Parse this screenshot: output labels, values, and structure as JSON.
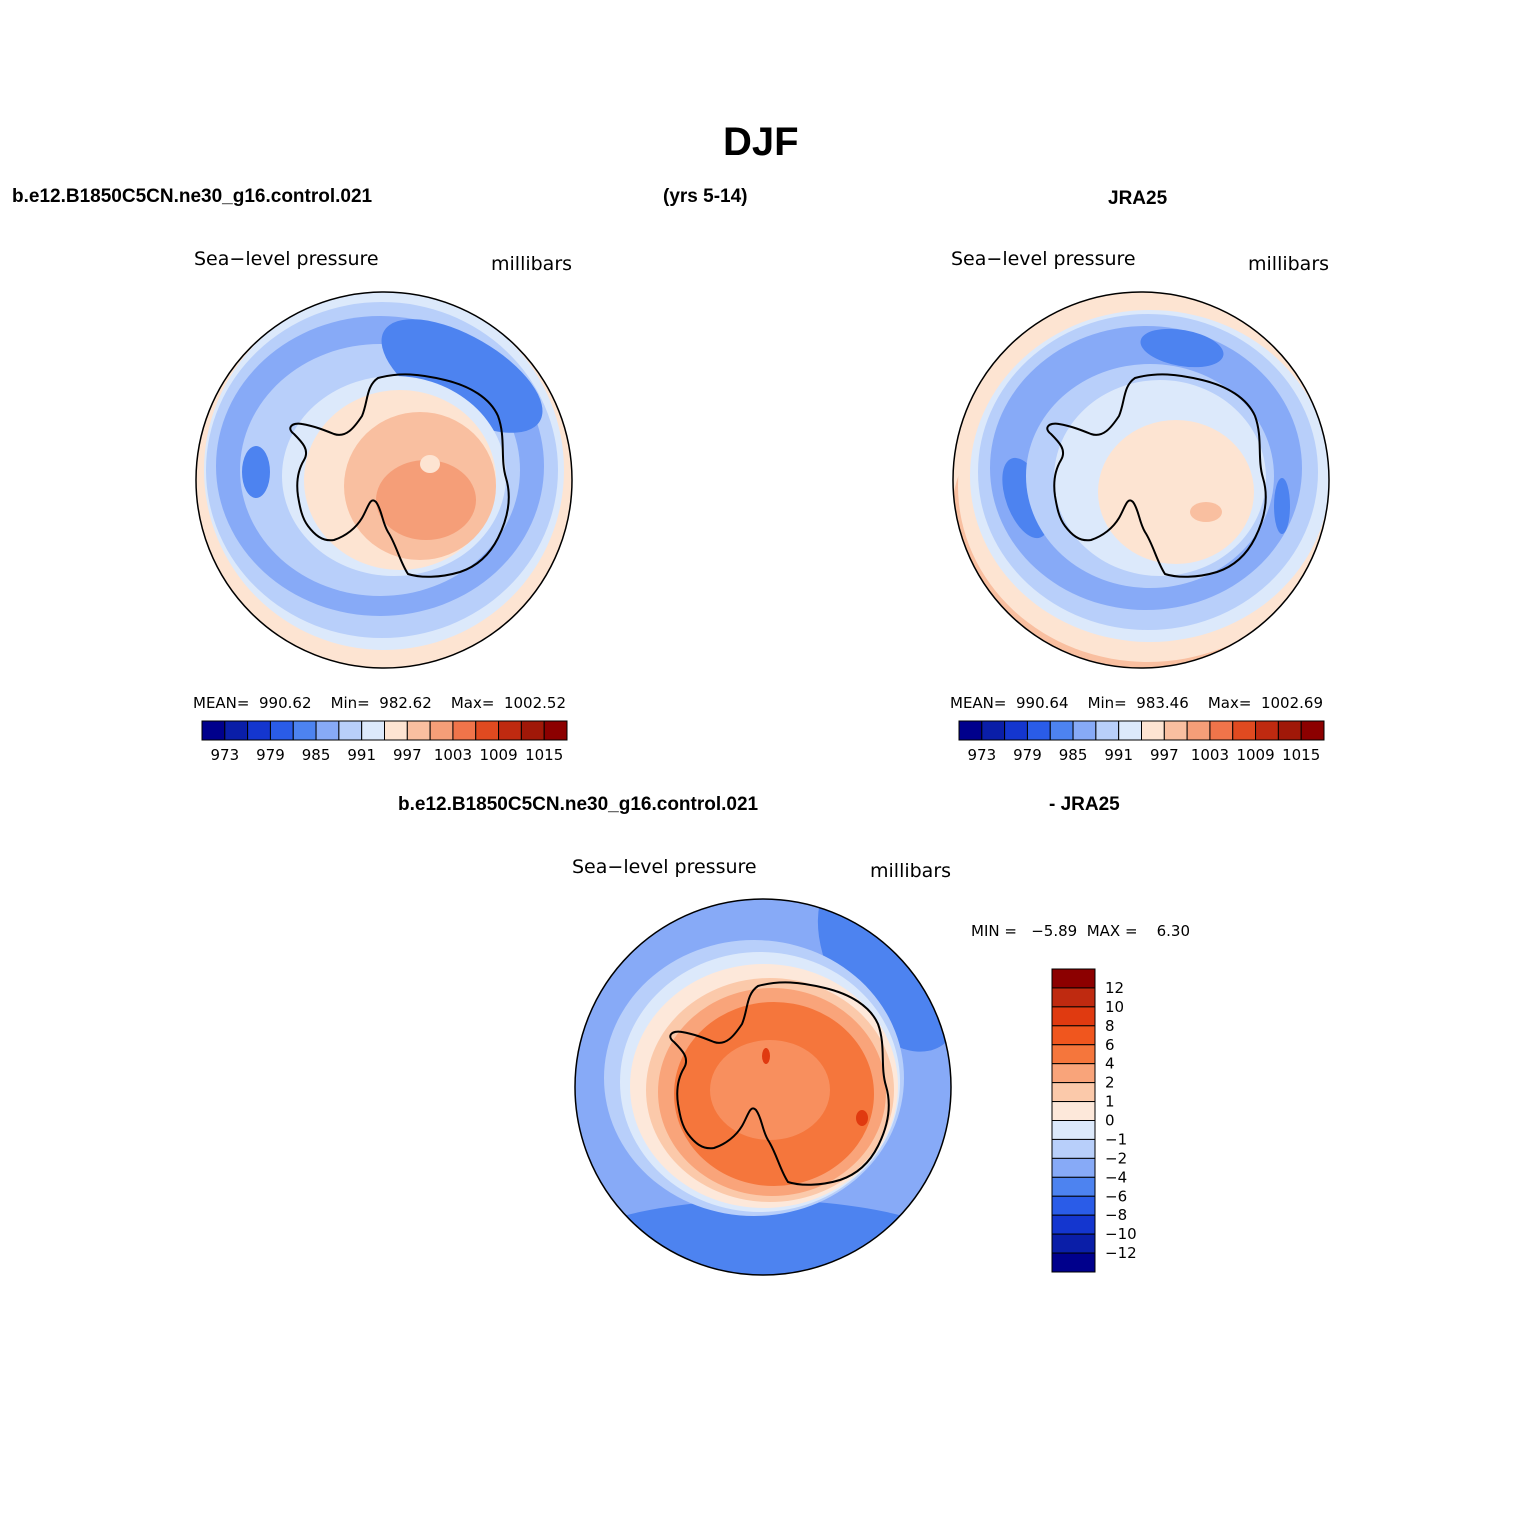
{
  "figure": {
    "title": "DJF",
    "left_case": "b.e12.B1850C5CN.ne30_g16.control.021",
    "years": "(yrs 5-14)",
    "right_case": "JRA25",
    "diff_case": "b.e12.B1850C5CN.ne30_g16.control.021",
    "diff_ref": "- JRA25"
  },
  "panels": {
    "model": {
      "variable": "Sea−level pressure",
      "units": "millibars",
      "stats": "MEAN=  990.62    Min=  982.62    Max=  1002.52"
    },
    "obs": {
      "variable": "Sea−level pressure",
      "units": "millibars",
      "stats": "MEAN=  990.64    Min=  983.46    Max=  1002.69"
    },
    "diff": {
      "variable": "Sea−level pressure",
      "units": "millibars",
      "stats": "MIN =   −5.89  MAX =    6.30"
    }
  },
  "colorbar_main": {
    "labels": [
      "973",
      "979",
      "985",
      "991",
      "997",
      "1003",
      "1009",
      "1015"
    ],
    "colors": [
      "#00008c",
      "#0a1ea8",
      "#1436cf",
      "#2a5ce8",
      "#4d83f0",
      "#87aaf7",
      "#b8cffa",
      "#dce9fb",
      "#fde4d2",
      "#f9bfa0",
      "#f59e78",
      "#f0744a",
      "#e04a20",
      "#bf2a10",
      "#a01808",
      "#8c0000"
    ]
  },
  "colorbar_diff": {
    "labels": [
      "12",
      "10",
      "8",
      "6",
      "4",
      "2",
      "1",
      "0",
      "−1",
      "−2",
      "−4",
      "−6",
      "−8",
      "−10",
      "−12"
    ],
    "colors": [
      "#8c0000",
      "#bf2a10",
      "#e03a10",
      "#f0561e",
      "#f5763c",
      "#f9a47a",
      "#fbc9aa",
      "#fde8da",
      "#dce9fb",
      "#b8cffa",
      "#87aaf7",
      "#4d83f0",
      "#2a5ce8",
      "#1436cf",
      "#0a1ea8",
      "#00008c"
    ]
  },
  "map_colors": {
    "model_outer": "#b8cffa",
    "obs_outer": "#87aaf7",
    "diff_outer": "#87aaf7"
  }
}
